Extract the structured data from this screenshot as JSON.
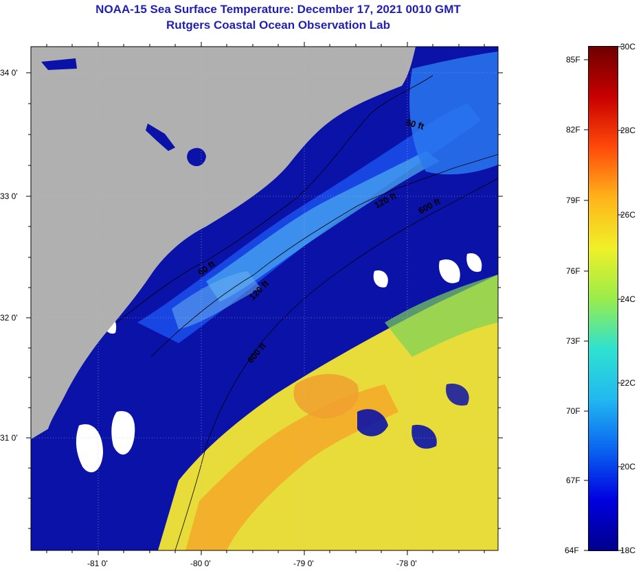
{
  "title": "NOAA-15 Sea Surface Temperature:  December 17, 2021 0010 GMT",
  "subtitle": "Rutgers Coastal Ocean Observation Lab",
  "axes": {
    "lat_labels": [
      "34 0'",
      "33 0'",
      "32 0'",
      "31 0'"
    ],
    "lon_labels": [
      "-81 0'",
      "-80 0'",
      "-79 0'",
      "-78 0'"
    ]
  },
  "contours": {
    "labels": [
      "60 ft",
      "120 ft",
      "600 ft",
      "60 ft",
      "120 ft",
      "600 ft"
    ]
  },
  "colorbar": {
    "fahrenheit_labels": [
      "85F",
      "82F",
      "79F",
      "76F",
      "73F",
      "70F",
      "67F",
      "64F"
    ],
    "celsius_labels": [
      "30C",
      "28C",
      "26C",
      "24C",
      "22C",
      "20C",
      "18C"
    ],
    "range_c": [
      18,
      30
    ],
    "colors": [
      "#00008c",
      "#0000e0",
      "#0a64f0",
      "#22b8f0",
      "#2ee2d0",
      "#9aec4a",
      "#f0f028",
      "#ffb41a",
      "#ff4a0a",
      "#c80000",
      "#6e0000"
    ]
  },
  "colors": {
    "land": "#b0b0b0",
    "cloud": "#ffffff",
    "deep_water": "#0a12a8",
    "title": "#1f1fb0"
  }
}
